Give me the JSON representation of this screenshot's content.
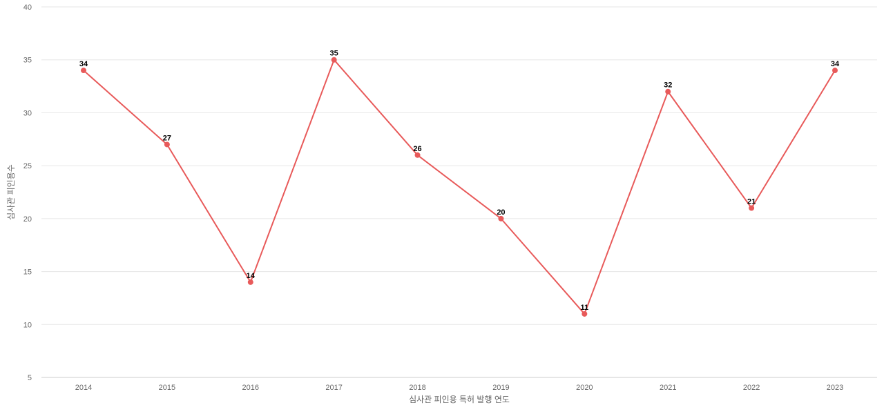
{
  "chart_data": {
    "type": "line",
    "title": "",
    "xlabel": "심사관 피인용 특허 발행 연도",
    "ylabel": "심사관 피인용수",
    "categories": [
      "2014",
      "2015",
      "2016",
      "2017",
      "2018",
      "2019",
      "2020",
      "2021",
      "2022",
      "2023"
    ],
    "series": [
      {
        "values": [
          34,
          27,
          14,
          35,
          26,
          20,
          11,
          32,
          21,
          34
        ],
        "color": "#e85a5a"
      }
    ],
    "ylim": [
      5,
      40
    ],
    "yticks": [
      5,
      10,
      15,
      20,
      25,
      30,
      35,
      40
    ],
    "grid": true,
    "legend": "none",
    "data_labels": true
  }
}
